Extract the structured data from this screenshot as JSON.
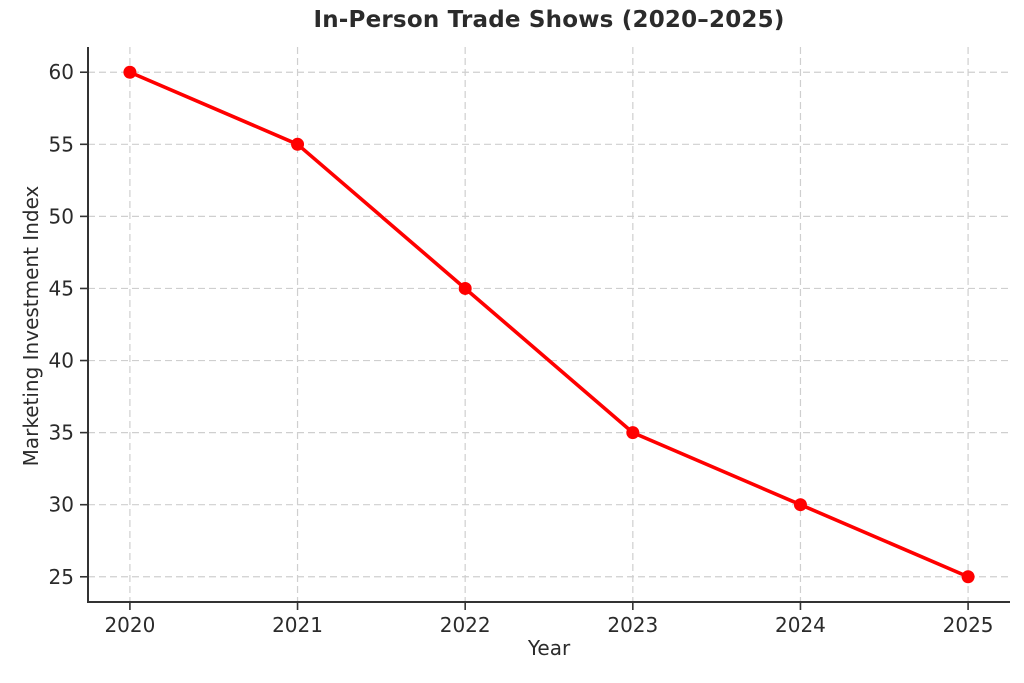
{
  "chart_data": {
    "type": "line",
    "title": "In-Person Trade Shows (2020–2025)",
    "xlabel": "Year",
    "ylabel": "Marketing Investment Index",
    "x": [
      2020,
      2021,
      2022,
      2023,
      2024,
      2025
    ],
    "series": [
      {
        "name": "Marketing Investment Index",
        "values": [
          60,
          55,
          45,
          35,
          30,
          25
        ]
      }
    ],
    "xticks": [
      2020,
      2021,
      2022,
      2023,
      2024,
      2025
    ],
    "yticks": [
      25,
      30,
      35,
      40,
      45,
      50,
      55,
      60
    ],
    "xlim": [
      2019.75,
      2025.25
    ],
    "ylim": [
      23.25,
      61.75
    ],
    "grid": true,
    "grid_style": "dashed",
    "legend_position": "none",
    "line_color": "#ff0000",
    "marker": "circle",
    "marker_color": "#ff0000",
    "background_color": "#ffffff",
    "grid_color": "#cfcfcf",
    "axis_color": "#333333",
    "text_color": "#2b2b2b"
  }
}
